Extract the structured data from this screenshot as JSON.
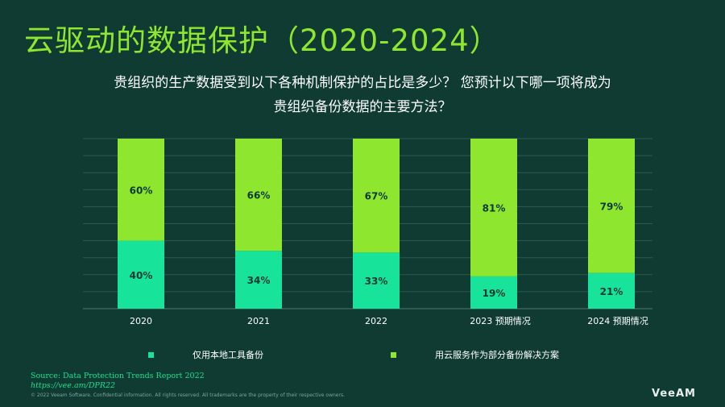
{
  "title": "云驱动的数据保护（2020-2024）",
  "subtitle": {
    "line1": "贵组织的生产数据受到以下各种机制保护的占比是多少？ 您预计以下哪一项将成为",
    "line2": "贵组织备份数据的主要方法？"
  },
  "colors": {
    "background": "#0f3b33",
    "series_local": "#18e39a",
    "series_cloud": "#8ee62f",
    "title": "#8ee62f",
    "grid": "#2f5a52",
    "label": "#0f3b33"
  },
  "chart_data": {
    "type": "bar",
    "stacked": true,
    "categories": [
      "2020",
      "2021",
      "2022",
      "2023  预期情况",
      "2024  预期情况"
    ],
    "series": [
      {
        "name": "仅用本地工具备份",
        "values": [
          40,
          34,
          33,
          19,
          21
        ],
        "labels": [
          "40%",
          "34%",
          "33%",
          "19%",
          "21%"
        ]
      },
      {
        "name": "用云服务作为部分备份解决方案",
        "values": [
          60,
          66,
          67,
          81,
          79
        ],
        "labels": [
          "60%",
          "66%",
          "67%",
          "81%",
          "79%"
        ]
      }
    ],
    "ylim": [
      0,
      100
    ],
    "grid": true,
    "legend": "bottom"
  },
  "footer": {
    "source": "Source: Data Protection Trends Report 2022",
    "link": "https://vee.am/DPR22",
    "copyright": "© 2022 Veeam Software. Confidential information. All rights reserved. All trademarks are the property of their respective owners.",
    "logo": "VeeAM"
  }
}
